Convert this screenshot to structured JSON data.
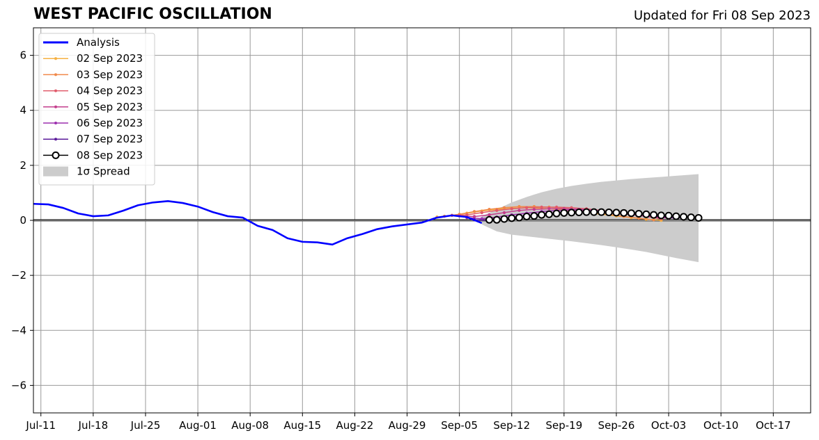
{
  "chart_data": {
    "type": "line",
    "title": "WEST PACIFIC OSCILLATION",
    "subtitle": "Updated for Fri 08 Sep 2023",
    "xlabel": "",
    "ylabel": "",
    "x_axis_type": "date",
    "xlim": [
      "2023-07-10",
      "2023-10-22"
    ],
    "ylim": [
      -7,
      7
    ],
    "x_ticks": [
      "2023-07-11",
      "2023-07-18",
      "2023-07-25",
      "2023-08-01",
      "2023-08-08",
      "2023-08-15",
      "2023-08-22",
      "2023-08-29",
      "2023-09-05",
      "2023-09-12",
      "2023-09-19",
      "2023-09-26",
      "2023-10-03",
      "2023-10-10",
      "2023-10-17"
    ],
    "x_tick_labels": [
      "Jul-11",
      "Jul-18",
      "Jul-25",
      "Aug-01",
      "Aug-08",
      "Aug-15",
      "Aug-22",
      "Aug-29",
      "Sep-05",
      "Sep-12",
      "Sep-19",
      "Sep-26",
      "Oct-03",
      "Oct-10",
      "Oct-17"
    ],
    "y_ticks": [
      -6,
      -4,
      -2,
      0,
      2,
      4,
      6
    ],
    "y_tick_labels": [
      "−6",
      "−4",
      "−2",
      "0",
      "2",
      "4",
      "6"
    ],
    "grid": true,
    "zero_line": true,
    "legend_position": "top-left",
    "legend": [
      "Analysis",
      "02 Sep 2023",
      "03 Sep 2023",
      "04 Sep 2023",
      "05 Sep 2023",
      "06 Sep 2023",
      "07 Sep 2023",
      "08 Sep 2023",
      "1σ Spread"
    ],
    "analysis": {
      "name": "Analysis",
      "color": "#0000ff",
      "x": [
        "2023-07-10",
        "2023-07-12",
        "2023-07-14",
        "2023-07-16",
        "2023-07-18",
        "2023-07-20",
        "2023-07-22",
        "2023-07-24",
        "2023-07-26",
        "2023-07-28",
        "2023-07-30",
        "2023-08-01",
        "2023-08-03",
        "2023-08-05",
        "2023-08-07",
        "2023-08-09",
        "2023-08-11",
        "2023-08-13",
        "2023-08-15",
        "2023-08-17",
        "2023-08-19",
        "2023-08-21",
        "2023-08-23",
        "2023-08-25",
        "2023-08-27",
        "2023-08-29",
        "2023-08-31",
        "2023-09-02",
        "2023-09-04",
        "2023-09-06",
        "2023-09-08"
      ],
      "y": [
        0.6,
        0.58,
        0.45,
        0.25,
        0.15,
        0.18,
        0.35,
        0.55,
        0.65,
        0.7,
        0.63,
        0.5,
        0.3,
        0.15,
        0.1,
        -0.2,
        -0.35,
        -0.65,
        -0.78,
        -0.8,
        -0.88,
        -0.65,
        -0.5,
        -0.32,
        -0.22,
        -0.15,
        -0.08,
        0.1,
        0.18,
        0.12,
        -0.1
      ]
    },
    "series": [
      {
        "name": "02 Sep 2023",
        "color": "#f5b041",
        "x": [
          "2023-09-02",
          "2023-09-04",
          "2023-09-06",
          "2023-09-08",
          "2023-09-10",
          "2023-09-12",
          "2023-09-14",
          "2023-09-16",
          "2023-09-18",
          "2023-09-20",
          "2023-09-22",
          "2023-09-24",
          "2023-09-26",
          "2023-09-28",
          "2023-09-30",
          "2023-10-02"
        ],
        "y": [
          0.12,
          0.18,
          0.26,
          0.34,
          0.4,
          0.44,
          0.46,
          0.44,
          0.4,
          0.34,
          0.28,
          0.22,
          0.16,
          0.1,
          0.04,
          0.0
        ]
      },
      {
        "name": "03 Sep 2023",
        "color": "#f0884a",
        "x": [
          "2023-09-03",
          "2023-09-05",
          "2023-09-07",
          "2023-09-09",
          "2023-09-11",
          "2023-09-13",
          "2023-09-15",
          "2023-09-17",
          "2023-09-19",
          "2023-09-21",
          "2023-09-23",
          "2023-09-25",
          "2023-09-27",
          "2023-09-29",
          "2023-10-01"
        ],
        "y": [
          0.15,
          0.22,
          0.32,
          0.4,
          0.46,
          0.5,
          0.5,
          0.48,
          0.44,
          0.38,
          0.3,
          0.22,
          0.14,
          0.08,
          0.02
        ]
      },
      {
        "name": "04 Sep 2023",
        "color": "#e05a6a",
        "x": [
          "2023-09-04",
          "2023-09-06",
          "2023-09-08",
          "2023-09-10",
          "2023-09-12",
          "2023-09-14",
          "2023-09-16",
          "2023-09-18",
          "2023-09-20",
          "2023-09-22",
          "2023-09-24",
          "2023-09-26",
          "2023-09-28",
          "2023-09-30",
          "2023-10-02"
        ],
        "y": [
          0.18,
          0.2,
          0.28,
          0.36,
          0.42,
          0.46,
          0.48,
          0.48,
          0.46,
          0.42,
          0.36,
          0.3,
          0.22,
          0.14,
          0.06
        ]
      },
      {
        "name": "05 Sep 2023",
        "color": "#c33d8c",
        "x": [
          "2023-09-05",
          "2023-09-07",
          "2023-09-09",
          "2023-09-11",
          "2023-09-13",
          "2023-09-15",
          "2023-09-17",
          "2023-09-19",
          "2023-09-21",
          "2023-09-23",
          "2023-09-25",
          "2023-09-27",
          "2023-09-29",
          "2023-10-01",
          "2023-10-03"
        ],
        "y": [
          0.16,
          0.14,
          0.2,
          0.28,
          0.36,
          0.4,
          0.42,
          0.42,
          0.4,
          0.36,
          0.3,
          0.24,
          0.18,
          0.12,
          0.08
        ]
      },
      {
        "name": "06 Sep 2023",
        "color": "#9b2fae",
        "x": [
          "2023-09-06",
          "2023-09-08",
          "2023-09-10",
          "2023-09-12",
          "2023-09-14",
          "2023-09-16",
          "2023-09-18",
          "2023-09-20",
          "2023-09-22",
          "2023-09-24",
          "2023-09-26",
          "2023-09-28",
          "2023-09-30",
          "2023-10-02",
          "2023-10-04"
        ],
        "y": [
          0.1,
          0.06,
          0.12,
          0.2,
          0.26,
          0.32,
          0.36,
          0.38,
          0.38,
          0.34,
          0.3,
          0.24,
          0.18,
          0.12,
          0.08
        ]
      },
      {
        "name": "07 Sep 2023",
        "color": "#5a1a9a",
        "x": [
          "2023-09-07",
          "2023-09-09",
          "2023-09-11",
          "2023-09-13",
          "2023-09-15",
          "2023-09-17",
          "2023-09-19",
          "2023-09-21",
          "2023-09-23",
          "2023-09-25",
          "2023-09-27",
          "2023-09-29",
          "2023-10-01",
          "2023-10-03",
          "2023-10-05"
        ],
        "y": [
          0.02,
          0.0,
          0.06,
          0.14,
          0.2,
          0.26,
          0.3,
          0.32,
          0.32,
          0.3,
          0.26,
          0.22,
          0.18,
          0.12,
          0.08
        ]
      },
      {
        "name": "08 Sep 2023",
        "color": "#000000",
        "marker": "open-circle",
        "x": [
          "2023-09-09",
          "2023-09-10",
          "2023-09-11",
          "2023-09-12",
          "2023-09-13",
          "2023-09-14",
          "2023-09-15",
          "2023-09-16",
          "2023-09-17",
          "2023-09-18",
          "2023-09-19",
          "2023-09-20",
          "2023-09-21",
          "2023-09-22",
          "2023-09-23",
          "2023-09-24",
          "2023-09-25",
          "2023-09-26",
          "2023-09-27",
          "2023-09-28",
          "2023-09-29",
          "2023-09-30",
          "2023-10-01",
          "2023-10-02",
          "2023-10-03",
          "2023-10-04",
          "2023-10-05",
          "2023-10-06",
          "2023-10-07"
        ],
        "y": [
          0.02,
          0.02,
          0.05,
          0.08,
          0.1,
          0.14,
          0.16,
          0.2,
          0.22,
          0.25,
          0.27,
          0.28,
          0.29,
          0.3,
          0.3,
          0.3,
          0.29,
          0.28,
          0.27,
          0.26,
          0.24,
          0.22,
          0.2,
          0.18,
          0.17,
          0.15,
          0.13,
          0.11,
          0.09
        ]
      }
    ],
    "spread": {
      "name": "1σ Spread",
      "color": "#cccccc",
      "x": [
        "2023-09-08",
        "2023-09-10",
        "2023-09-12",
        "2023-09-14",
        "2023-09-16",
        "2023-09-18",
        "2023-09-20",
        "2023-09-22",
        "2023-09-24",
        "2023-09-26",
        "2023-09-28",
        "2023-09-30",
        "2023-10-02",
        "2023-10-04",
        "2023-10-07"
      ],
      "upper": [
        0.15,
        0.4,
        0.65,
        0.85,
        1.02,
        1.15,
        1.25,
        1.33,
        1.4,
        1.45,
        1.5,
        1.54,
        1.58,
        1.62,
        1.68
      ],
      "lower": [
        -0.15,
        -0.4,
        -0.52,
        -0.58,
        -0.64,
        -0.7,
        -0.76,
        -0.83,
        -0.9,
        -0.98,
        -1.06,
        -1.15,
        -1.26,
        -1.37,
        -1.52
      ]
    }
  }
}
